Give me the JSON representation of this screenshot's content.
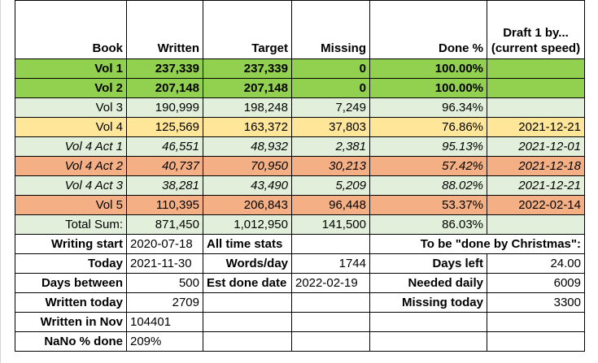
{
  "headers": {
    "book": "Book",
    "written": "Written",
    "target": "Target",
    "missing": "Missing",
    "done": "Done %",
    "draft_line1": "Draft 1 by...",
    "draft_line2": "(current speed)"
  },
  "rows": [
    {
      "book": "Vol 1",
      "written": "237,339",
      "target": "237,339",
      "missing": "0",
      "done": "100.00%",
      "draft": "",
      "color": "#92d050",
      "bold": true,
      "italic": false
    },
    {
      "book": "Vol 2",
      "written": "207,148",
      "target": "207,148",
      "missing": "0",
      "done": "100.00%",
      "draft": "",
      "color": "#92d050",
      "bold": true,
      "italic": false
    },
    {
      "book": "Vol 3",
      "written": "190,999",
      "target": "198,248",
      "missing": "7,249",
      "done": "96.34%",
      "draft": "",
      "color": "#e2efda",
      "bold": false,
      "italic": false
    },
    {
      "book": "Vol 4",
      "written": "125,569",
      "target": "163,372",
      "missing": "37,803",
      "done": "76.86%",
      "draft": "2021-12-21",
      "color": "#ffe699",
      "bold": false,
      "italic": false
    },
    {
      "book": "Vol 4 Act 1",
      "written": "46,551",
      "target": "48,932",
      "missing": "2,381",
      "done": "95.13%",
      "draft": "2021-12-01",
      "color": "#e2efda",
      "bold": false,
      "italic": true
    },
    {
      "book": "Vol 4 Act 2",
      "written": "40,737",
      "target": "70,950",
      "missing": "30,213",
      "done": "57.42%",
      "draft": "2021-12-18",
      "color": "#f4b084",
      "bold": false,
      "italic": true
    },
    {
      "book": "Vol 4 Act 3",
      "written": "38,281",
      "target": "43,490",
      "missing": "5,209",
      "done": "88.02%",
      "draft": "2021-12-21",
      "color": "#e2efda",
      "bold": false,
      "italic": true
    },
    {
      "book": "Vol 5",
      "written": "110,395",
      "target": "206,843",
      "missing": "96,448",
      "done": "53.37%",
      "draft": "2022-02-14",
      "color": "#f4b084",
      "bold": false,
      "italic": false
    },
    {
      "book": "Total Sum:",
      "written": "871,450",
      "target": "1,012,950",
      "missing": "141,500",
      "done": "86.03%",
      "draft": "",
      "color": "#e2efda",
      "bold": false,
      "italic": false
    }
  ],
  "stats": {
    "writing_start_label": "Writing start",
    "writing_start_value": "2020-07-18",
    "all_time_label": "All time stats",
    "christmas_label": "To be \"done by Christmas\":",
    "today_label": "Today",
    "today_value": "2021-11-30",
    "words_day_label": "Words/day",
    "words_day_value": "1744",
    "days_left_label": "Days left",
    "days_left_value": "24.00",
    "days_between_label": "Days between",
    "days_between_value": "500",
    "est_done_label": "Est done date",
    "est_done_value": "2022-02-19",
    "needed_daily_label": "Needed daily",
    "needed_daily_value": "6009",
    "written_today_label": "Written today",
    "written_today_value": "2709",
    "missing_today_label": "Missing today",
    "missing_today_value": "3300",
    "written_nov_label": "Written in Nov",
    "written_nov_value": "104401",
    "nano_label": "NaNo % done",
    "nano_value": "209%"
  }
}
